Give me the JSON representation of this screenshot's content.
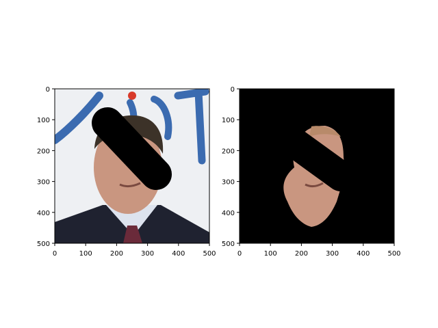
{
  "figure": {
    "background": "#ffffff"
  },
  "chart_data": [
    {
      "type": "image",
      "content": "photo of a man in a suit and red patterned tie; a black diagonal occlusion band covers the eye area",
      "xlim": [
        0,
        500
      ],
      "ylim": [
        500,
        0
      ],
      "y_inverted": true,
      "xticks": [
        0,
        100,
        200,
        300,
        400,
        500
      ],
      "yticks": [
        0,
        100,
        200,
        300,
        400,
        500
      ],
      "grid": false,
      "legend": "none"
    },
    {
      "type": "image",
      "content": "segmentation result: only the face region is kept; everything else is black, including the occlusion band",
      "xlim": [
        0,
        500
      ],
      "ylim": [
        500,
        0
      ],
      "y_inverted": true,
      "xticks": [
        0,
        100,
        200,
        300,
        400,
        500
      ],
      "yticks": [
        0,
        100,
        200,
        300,
        400,
        500
      ],
      "grid": false,
      "legend": "none"
    }
  ],
  "colors": {
    "axis": "#000000",
    "left_background": "#eef0f3",
    "logo_blue": "#3b6bb0",
    "logo_red": "#d83a2a",
    "hair": "#3c3228",
    "skin": "#c99680",
    "suit": "#1f2230",
    "shirt": "#dde3ee",
    "tie": "#6a2a3a",
    "occlusion": "#000000",
    "mask_background": "#000000"
  }
}
